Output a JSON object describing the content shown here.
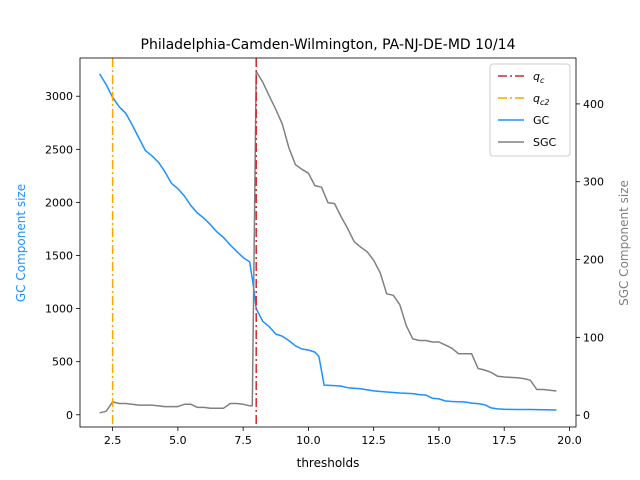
{
  "chart_data": {
    "type": "line",
    "title": "Philadelphia-Camden-Wilmington, PA-NJ-DE-MD 10/14",
    "xlabel": "thresholds",
    "ylabel_left": "GC Component size",
    "ylabel_right": "SGC Component size",
    "xlim": [
      1.25,
      20.25
    ],
    "ylim_left": [
      -115,
      3360
    ],
    "ylim_right": [
      -15.2,
      459
    ],
    "xticks": [
      2.5,
      5.0,
      7.5,
      10.0,
      12.5,
      15.0,
      17.5,
      20.0
    ],
    "xtick_labels": [
      "2.5",
      "5.0",
      "7.5",
      "10.0",
      "12.5",
      "15.0",
      "17.5",
      "20.0"
    ],
    "yticks_left": [
      0,
      500,
      1000,
      1500,
      2000,
      2500,
      3000
    ],
    "yticks_right": [
      0,
      100,
      200,
      300,
      400
    ],
    "legend_position": "top-right",
    "legend": [
      {
        "label": "q",
        "sub": "c",
        "style": "dashdot",
        "color": "#d62728"
      },
      {
        "label": "q",
        "sub": "c2",
        "style": "dashdot",
        "color": "#ffa500"
      },
      {
        "label": "GC",
        "style": "solid",
        "color": "#1e90ff"
      },
      {
        "label": "SGC",
        "style": "solid",
        "color": "#808080"
      }
    ],
    "vlines": [
      {
        "name": "qc",
        "x": 8.0,
        "color": "#d62728"
      },
      {
        "name": "qc2",
        "x": 2.5,
        "color": "#ffa500"
      }
    ],
    "series": [
      {
        "name": "GC",
        "axis": "left",
        "color": "#1e90ff",
        "points": [
          [
            2.0,
            3210
          ],
          [
            2.25,
            3110
          ],
          [
            2.5,
            2990
          ],
          [
            2.75,
            2900
          ],
          [
            3.0,
            2840
          ],
          [
            3.25,
            2730
          ],
          [
            3.5,
            2610
          ],
          [
            3.75,
            2490
          ],
          [
            4.0,
            2440
          ],
          [
            4.25,
            2380
          ],
          [
            4.5,
            2290
          ],
          [
            4.75,
            2180
          ],
          [
            5.0,
            2130
          ],
          [
            5.25,
            2060
          ],
          [
            5.5,
            1970
          ],
          [
            5.75,
            1900
          ],
          [
            6.0,
            1850
          ],
          [
            6.25,
            1790
          ],
          [
            6.5,
            1720
          ],
          [
            6.75,
            1670
          ],
          [
            7.0,
            1600
          ],
          [
            7.25,
            1540
          ],
          [
            7.5,
            1480
          ],
          [
            7.75,
            1440
          ],
          [
            7.9,
            1200
          ],
          [
            8.0,
            1000
          ],
          [
            8.25,
            880
          ],
          [
            8.5,
            830
          ],
          [
            8.75,
            760
          ],
          [
            9.0,
            740
          ],
          [
            9.25,
            700
          ],
          [
            9.5,
            650
          ],
          [
            9.75,
            620
          ],
          [
            10.0,
            610
          ],
          [
            10.25,
            590
          ],
          [
            10.4,
            550
          ],
          [
            10.6,
            280
          ],
          [
            11.0,
            275
          ],
          [
            11.25,
            270
          ],
          [
            11.5,
            255
          ],
          [
            12.0,
            245
          ],
          [
            12.5,
            225
          ],
          [
            13.0,
            215
          ],
          [
            13.5,
            205
          ],
          [
            14.0,
            200
          ],
          [
            14.25,
            190
          ],
          [
            14.5,
            185
          ],
          [
            14.75,
            155
          ],
          [
            15.0,
            150
          ],
          [
            15.25,
            130
          ],
          [
            15.5,
            125
          ],
          [
            16.0,
            120
          ],
          [
            16.25,
            110
          ],
          [
            16.5,
            105
          ],
          [
            16.75,
            95
          ],
          [
            17.0,
            65
          ],
          [
            17.25,
            55
          ],
          [
            17.5,
            52
          ],
          [
            18.0,
            50
          ],
          [
            18.5,
            50
          ],
          [
            19.0,
            48
          ],
          [
            19.5,
            45
          ]
        ]
      },
      {
        "name": "SGC",
        "axis": "right",
        "color": "#808080",
        "points": [
          [
            2.0,
            3
          ],
          [
            2.25,
            5
          ],
          [
            2.5,
            17
          ],
          [
            2.75,
            15
          ],
          [
            3.0,
            15
          ],
          [
            3.5,
            13
          ],
          [
            4.0,
            13
          ],
          [
            4.5,
            11
          ],
          [
            5.0,
            11
          ],
          [
            5.25,
            14
          ],
          [
            5.5,
            14
          ],
          [
            5.75,
            10
          ],
          [
            6.0,
            10
          ],
          [
            6.25,
            9
          ],
          [
            6.5,
            9
          ],
          [
            6.75,
            9
          ],
          [
            7.0,
            15
          ],
          [
            7.25,
            15
          ],
          [
            7.5,
            14
          ],
          [
            7.75,
            12
          ],
          [
            7.85,
            12
          ],
          [
            8.0,
            442
          ],
          [
            8.25,
            428
          ],
          [
            8.5,
            410
          ],
          [
            8.75,
            393
          ],
          [
            9.0,
            374
          ],
          [
            9.25,
            344
          ],
          [
            9.5,
            322
          ],
          [
            9.75,
            316
          ],
          [
            10.0,
            311
          ],
          [
            10.25,
            295
          ],
          [
            10.5,
            293
          ],
          [
            10.75,
            273
          ],
          [
            11.0,
            272
          ],
          [
            11.25,
            255
          ],
          [
            11.5,
            240
          ],
          [
            11.75,
            223
          ],
          [
            12.0,
            216
          ],
          [
            12.25,
            210
          ],
          [
            12.5,
            199
          ],
          [
            12.75,
            183
          ],
          [
            13.0,
            156
          ],
          [
            13.25,
            154
          ],
          [
            13.5,
            142
          ],
          [
            13.75,
            115
          ],
          [
            14.0,
            98
          ],
          [
            14.25,
            96
          ],
          [
            14.5,
            96
          ],
          [
            14.75,
            94
          ],
          [
            15.0,
            94
          ],
          [
            15.25,
            90
          ],
          [
            15.5,
            86
          ],
          [
            15.75,
            79
          ],
          [
            16.0,
            79
          ],
          [
            16.25,
            79
          ],
          [
            16.5,
            60
          ],
          [
            16.75,
            58
          ],
          [
            17.0,
            55
          ],
          [
            17.25,
            50
          ],
          [
            17.5,
            49
          ],
          [
            18.0,
            48
          ],
          [
            18.25,
            47
          ],
          [
            18.5,
            45
          ],
          [
            18.75,
            33
          ],
          [
            19.0,
            33
          ],
          [
            19.5,
            31
          ]
        ]
      }
    ]
  }
}
